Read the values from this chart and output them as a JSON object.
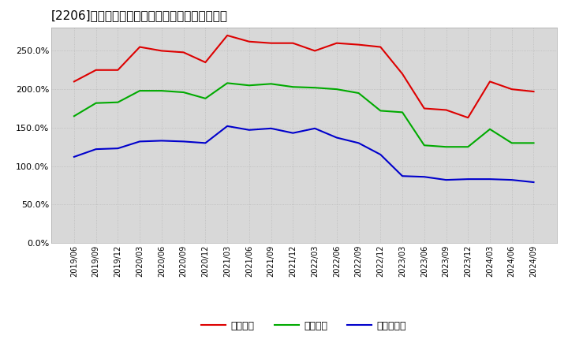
{
  "title": "[2206]　流動比率、当座比率、現預金比率の推移",
  "x_labels": [
    "2019/06",
    "2019/09",
    "2019/12",
    "2020/03",
    "2020/06",
    "2020/09",
    "2020/12",
    "2021/03",
    "2021/06",
    "2021/09",
    "2021/12",
    "2022/03",
    "2022/06",
    "2022/09",
    "2022/12",
    "2023/03",
    "2023/06",
    "2023/09",
    "2023/12",
    "2024/03",
    "2024/06",
    "2024/09"
  ],
  "ryudo": [
    2.1,
    2.25,
    2.25,
    2.55,
    2.5,
    2.48,
    2.35,
    2.7,
    2.62,
    2.6,
    2.6,
    2.5,
    2.6,
    2.58,
    2.55,
    2.2,
    1.75,
    1.73,
    1.63,
    2.1,
    2.0,
    1.97
  ],
  "toza": [
    1.65,
    1.82,
    1.83,
    1.98,
    1.98,
    1.96,
    1.88,
    2.08,
    2.05,
    2.07,
    2.03,
    2.02,
    2.0,
    1.95,
    1.72,
    1.7,
    1.27,
    1.25,
    1.25,
    1.48,
    1.3,
    1.3
  ],
  "genkin": [
    1.12,
    1.22,
    1.23,
    1.32,
    1.33,
    1.32,
    1.3,
    1.52,
    1.47,
    1.49,
    1.43,
    1.49,
    1.37,
    1.3,
    1.15,
    0.87,
    0.86,
    0.82,
    0.83,
    0.83,
    0.82,
    0.79
  ],
  "ryudo_color": "#dd0000",
  "toza_color": "#00aa00",
  "genkin_color": "#0000cc",
  "background_color": "#ffffff",
  "plot_bg_color": "#d8d8d8",
  "grid_color": "#bbbbbb",
  "ylim": [
    0.0,
    2.8
  ],
  "yticks": [
    0.0,
    0.5,
    1.0,
    1.5,
    2.0,
    2.5
  ],
  "legend_labels": [
    "流動比率",
    "当座比率",
    "現預金比率"
  ],
  "title_fontsize": 11,
  "tick_fontsize": 7,
  "legend_fontsize": 9
}
